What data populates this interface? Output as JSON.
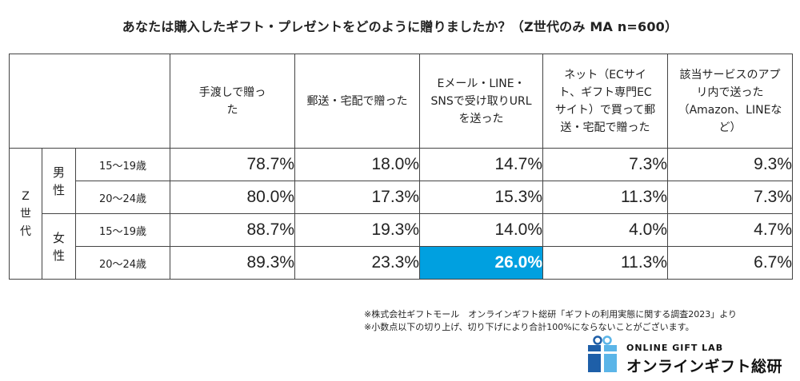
{
  "title": "あなたは購入したギフト・プレゼントをどのように贈りましたか？（Z世代のみ MA n=600）",
  "chart_data": {
    "type": "table",
    "title": "あなたは購入したギフト・プレゼントをどのように贈りましたか？（Z世代のみ MA n=600）",
    "columns": [
      "手渡しで贈った",
      "郵送・宅配で贈った",
      "Eメール・LINE・SNSで受け取りURLを送った",
      "ネット（ECサイト、ギフト専門ECサイト）で買って郵送・宅配で贈った",
      "該当サービスのアプリ内で送った（Amazon、LINEなど）"
    ],
    "generation": "Z世代",
    "groups": [
      {
        "sex": "男性",
        "rows": [
          {
            "age": "15〜19歳",
            "values": [
              "78.7%",
              "18.0%",
              "14.7%",
              "7.3%",
              "9.3%"
            ]
          },
          {
            "age": "20〜24歳",
            "values": [
              "80.0%",
              "17.3%",
              "15.3%",
              "11.3%",
              "7.3%"
            ]
          }
        ]
      },
      {
        "sex": "女性",
        "rows": [
          {
            "age": "15〜19歳",
            "values": [
              "88.7%",
              "19.3%",
              "14.0%",
              "4.0%",
              "4.7%"
            ]
          },
          {
            "age": "20〜24歳",
            "values": [
              "89.3%",
              "23.3%",
              "26.0%",
              "11.3%",
              "6.7%"
            ]
          }
        ]
      }
    ],
    "highlight": {
      "group": 1,
      "row": 1,
      "column": 2,
      "color": "#00a0e0"
    }
  },
  "notes": [
    "※株式会社ギフトモール　オンラインギフト総研「ギフトの利用実態に関する調査2023」より",
    "※小数点以下の切り上げ、切り下げにより合計100%にならないことがございます。"
  ],
  "logo": {
    "top": "ONLINE GIFT LAB",
    "bottom": "オンラインギフト総研",
    "color_dark": "#1e5fa8",
    "color_light": "#5bb5e8"
  }
}
